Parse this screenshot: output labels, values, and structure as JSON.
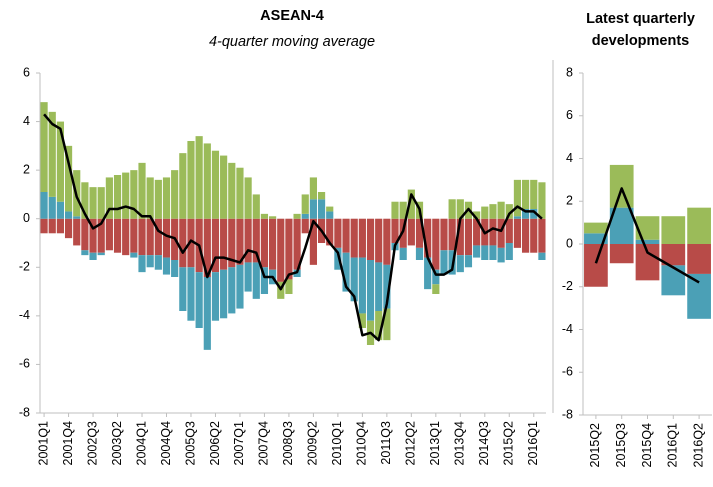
{
  "chart_data": [
    {
      "type": "bar",
      "title": "ASEAN-4",
      "subtitle": "4-quarter moving average",
      "categories": [
        "2001Q1",
        null,
        null,
        "2001Q4",
        null,
        null,
        "2002Q3",
        null,
        null,
        "2003Q2",
        null,
        null,
        "2004Q1",
        null,
        null,
        "2004Q4",
        null,
        null,
        "2005Q3",
        null,
        null,
        "2006Q2",
        null,
        null,
        "2007Q1",
        null,
        null,
        "2007Q4",
        null,
        null,
        "2008Q3",
        null,
        null,
        "2009Q2",
        null,
        null,
        "2010Q1",
        null,
        null,
        "2010Q4",
        null,
        null,
        "2011Q3",
        null,
        null,
        "2012Q2",
        null,
        null,
        "2013Q1",
        null,
        null,
        "2013Q4",
        null,
        null,
        "2014Q3",
        null,
        null,
        "2015Q2",
        null,
        null,
        "2016Q1",
        null
      ],
      "ylim": [
        -8,
        6
      ],
      "yticks": [
        -8,
        -6,
        -4,
        -2,
        0,
        2,
        4,
        6
      ],
      "series": [
        {
          "color": "#b84b48",
          "values": [
            -0.6,
            -0.6,
            -0.6,
            -0.8,
            -1.1,
            -1.3,
            -1.4,
            -1.4,
            -1.3,
            -1.4,
            -1.5,
            -1.4,
            -1.5,
            -1.5,
            -1.5,
            -1.6,
            -1.7,
            -2.0,
            -2.0,
            -2.2,
            -2.4,
            -2.2,
            -2.1,
            -2.0,
            -1.9,
            -1.8,
            -1.8,
            -2.0,
            -2.1,
            -2.6,
            -2.5,
            -2.1,
            -0.6,
            -1.9,
            -1.0,
            -1.1,
            -1.2,
            -1.4,
            -1.6,
            -1.6,
            -1.7,
            -1.8,
            -1.9,
            -1.0,
            -1.2,
            -1.1,
            -1.2,
            -1.6,
            -2.1,
            -1.3,
            -1.3,
            -1.5,
            -1.5,
            -1.1,
            -1.1,
            -1.1,
            -1.2,
            -1.0,
            -1.2,
            -1.4,
            -1.4,
            -1.4
          ]
        },
        {
          "color": "#4ba0b6",
          "values": [
            1.1,
            0.9,
            0.7,
            0.3,
            0.1,
            -0.2,
            -0.3,
            -0.1,
            0,
            0,
            0,
            -0.2,
            -0.7,
            -0.5,
            -0.6,
            -0.7,
            -0.7,
            -1.8,
            -2.2,
            -2.3,
            -3.0,
            -2.0,
            -2.0,
            -1.9,
            -1.8,
            -1.2,
            -1.5,
            -1.1,
            -0.6,
            0,
            0,
            -0.3,
            0.2,
            0.8,
            0.8,
            0.3,
            -0.9,
            -1.6,
            -1.8,
            -2.3,
            -2.5,
            -2.0,
            -1.8,
            -0.3,
            -0.5,
            0,
            -0.5,
            -1.3,
            -0.6,
            -1.0,
            -1.0,
            -0.7,
            -0.5,
            -0.5,
            -0.6,
            -0.6,
            -0.6,
            -0.7,
            0.1,
            0.4,
            0.4,
            -0.3
          ]
        },
        {
          "color": "#9bbb59",
          "values": [
            3.7,
            3.5,
            3.3,
            2.7,
            1.9,
            1.5,
            1.3,
            1.3,
            1.7,
            1.8,
            1.9,
            2.0,
            2.3,
            1.7,
            1.6,
            1.7,
            2.0,
            2.7,
            3.2,
            3.4,
            3.1,
            2.8,
            2.6,
            2.3,
            2.1,
            1.7,
            1.0,
            0.2,
            0.1,
            -0.7,
            -0.6,
            0.2,
            0.8,
            0.9,
            0.3,
            0.2,
            0,
            0,
            0,
            -0.6,
            -1.0,
            -1.2,
            -1.3,
            0.7,
            0.7,
            1.2,
            0.7,
            0,
            -0.4,
            0,
            0.8,
            0.8,
            0.7,
            0.3,
            0.5,
            0.6,
            0.7,
            0.6,
            1.5,
            1.2,
            1.2,
            1.5
          ]
        },
        {
          "type": "line",
          "color": "#000000",
          "values": [
            4.3,
            3.9,
            3.7,
            2.3,
            0.9,
            0.2,
            -0.4,
            -0.2,
            0.4,
            0.4,
            0.5,
            0.4,
            0.1,
            0.1,
            -0.5,
            -0.7,
            -0.8,
            -1.4,
            -0.9,
            -1.1,
            -2.4,
            -1.6,
            -1.6,
            -1.7,
            -1.8,
            -1.3,
            -1.4,
            -2.4,
            -2.4,
            -2.9,
            -2.3,
            -2.2,
            -1.2,
            -0.1,
            -0.5,
            -1.0,
            -1.4,
            -2.8,
            -3.2,
            -4.8,
            -4.7,
            -5.0,
            -3.5,
            -1.1,
            -0.5,
            1.0,
            0.4,
            -1.6,
            -2.3,
            -2.3,
            -2.1,
            0.0,
            0.4,
            0.0,
            -0.6,
            -0.4,
            -0.5,
            0.2,
            0.5,
            0.3,
            0.3,
            0.0
          ]
        }
      ]
    },
    {
      "type": "bar",
      "title": "Latest quarterly developments",
      "categories": [
        "2015Q2",
        "2015Q3",
        "2015Q4",
        "2016Q1",
        "2016Q2"
      ],
      "ylim": [
        -8,
        8
      ],
      "yticks": [
        -8,
        -6,
        -4,
        -2,
        0,
        2,
        4,
        6,
        8
      ],
      "series": [
        {
          "color": "#b84b48",
          "values": [
            -2.0,
            -0.9,
            -1.7,
            -1.0,
            -1.4
          ]
        },
        {
          "color": "#4ba0b6",
          "values": [
            0.5,
            1.7,
            0.2,
            -1.4,
            -2.1
          ]
        },
        {
          "color": "#9bbb59",
          "values": [
            0.5,
            2.0,
            1.1,
            1.3,
            1.7
          ]
        },
        {
          "type": "line",
          "color": "#000000",
          "values": [
            -0.9,
            2.6,
            -0.4,
            -1.1,
            -1.8
          ]
        }
      ]
    }
  ]
}
